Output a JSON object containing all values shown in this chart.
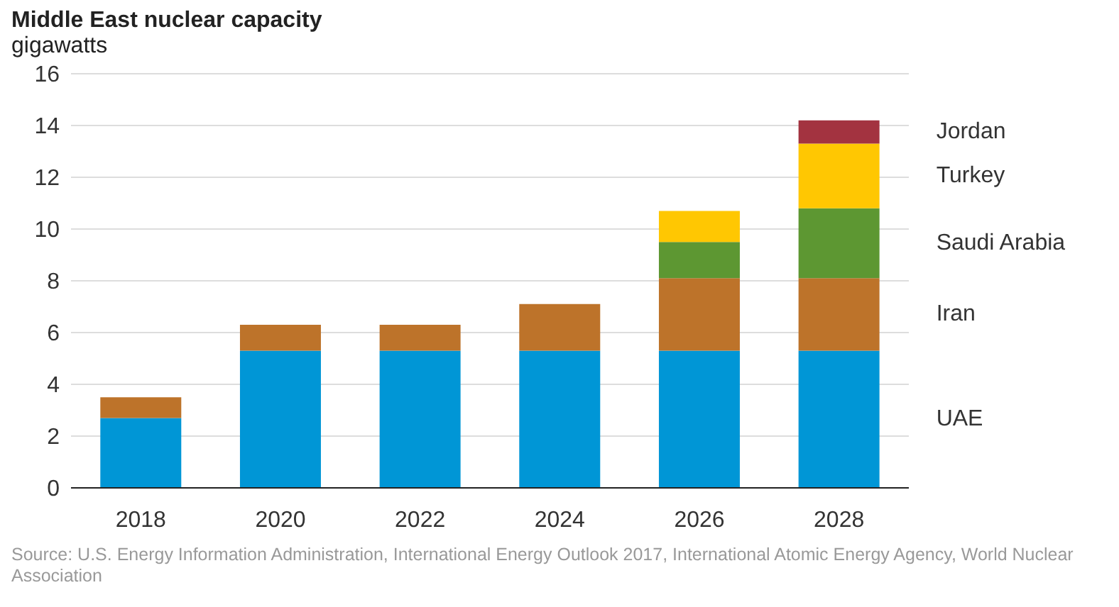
{
  "chart_data": {
    "type": "bar",
    "title": "Middle East nuclear capacity",
    "ylabel": "gigawatts",
    "categories": [
      "2018",
      "2020",
      "2022",
      "2024",
      "2026",
      "2028"
    ],
    "stacked": true,
    "series": [
      {
        "name": "UAE",
        "color": "#0096d6",
        "values": [
          2.7,
          5.3,
          5.3,
          5.3,
          5.3,
          5.3
        ]
      },
      {
        "name": "Iran",
        "color": "#bd732a",
        "values": [
          0.8,
          1.0,
          1.0,
          1.8,
          2.8,
          2.8
        ]
      },
      {
        "name": "Saudi Arabia",
        "color": "#5d9732",
        "values": [
          null,
          null,
          null,
          null,
          1.4,
          2.7
        ]
      },
      {
        "name": "Turkey",
        "color": "#ffc702",
        "values": [
          null,
          null,
          null,
          null,
          1.2,
          2.5
        ]
      },
      {
        "name": "Jordan",
        "color": "#a33340",
        "values": [
          null,
          null,
          null,
          null,
          null,
          0.9
        ]
      }
    ],
    "ylim": [
      0,
      16
    ],
    "yticks": [
      0,
      2,
      4,
      6,
      8,
      10,
      12,
      14,
      16
    ],
    "grid": "y",
    "legend": false,
    "annotations": [
      "Source: U.S. Energy Information Administration, International Energy Outlook 2017, International Atomic Energy Agency, World Nuclear Association"
    ]
  }
}
